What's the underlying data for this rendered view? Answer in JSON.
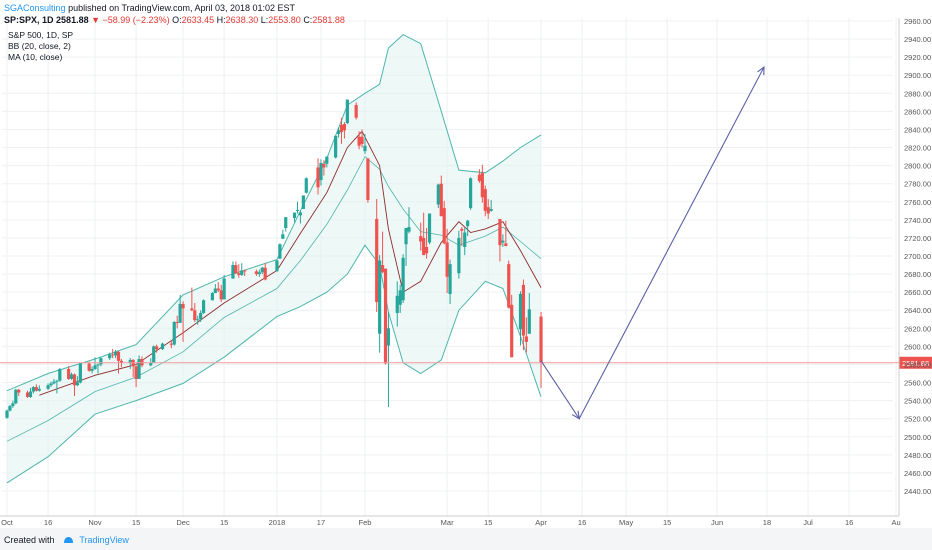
{
  "header": {
    "author": "SGAConsulting",
    "published_text": "published on TradingView.com, April 03, 2018 01:02 EST"
  },
  "quote": {
    "symbol": "SP:SPX, 1D",
    "last": "2581.88",
    "change": "▼ −58.99 (−2.23%)",
    "o_label": "O:",
    "o": "2633.45",
    "h_label": "H:",
    "h": "2638.30",
    "l_label": "L:",
    "l": "2553.80",
    "c_label": "C:",
    "c": "2581.88"
  },
  "legend": {
    "line1": "S&P 500, 1D, SP",
    "line2": "BB (20, close, 2)",
    "line3": "MA (10, close)"
  },
  "footer": {
    "created_with": "Created with",
    "brand": "TradingView"
  },
  "colors": {
    "up": "#26a69a",
    "down": "#ef5350",
    "band": "#4db6ac",
    "ma": "#8e2b2b",
    "arrow": "#5a60a6",
    "price_line": "#ef9a9a",
    "price_tag": "#ef5350"
  },
  "chart_data": {
    "type": "candlestick",
    "ylim": [
      2430,
      2970
    ],
    "price_line": 2581.88,
    "price_tag": "2581.88",
    "y_ticks": [
      2440,
      2460,
      2480,
      2500,
      2520,
      2540,
      2560,
      2580,
      2600,
      2620,
      2640,
      2660,
      2680,
      2700,
      2720,
      2740,
      2760,
      2780,
      2800,
      2820,
      2840,
      2860,
      2880,
      2900,
      2920,
      2940,
      2960
    ],
    "x_ticks": [
      {
        "label": "Oct",
        "d": "2017-10-02"
      },
      {
        "label": "16",
        "d": "2017-10-16"
      },
      {
        "label": "Nov",
        "d": "2017-11-01"
      },
      {
        "label": "15",
        "d": "2017-11-15"
      },
      {
        "label": "Dec",
        "d": "2017-12-01"
      },
      {
        "label": "15",
        "d": "2017-12-15"
      },
      {
        "label": "2018",
        "d": "2018-01-02"
      },
      {
        "label": "17",
        "d": "2018-01-17"
      },
      {
        "label": "Feb",
        "d": "2018-02-01"
      },
      {
        "label": "Mar",
        "d": "2018-03-01"
      },
      {
        "label": "15",
        "d": "2018-03-15"
      },
      {
        "label": "Apr",
        "d": "2018-04-02"
      },
      {
        "label": "16",
        "d": "2018-04-16"
      },
      {
        "label": "May",
        "d": "2018-05-01"
      },
      {
        "label": "15",
        "d": "2018-05-15"
      },
      {
        "label": "Jun",
        "d": "2018-06-01"
      },
      {
        "label": "18",
        "d": "2018-06-18"
      },
      {
        "label": "Jul",
        "d": "2018-07-02"
      },
      {
        "label": "16",
        "d": "2018-07-16"
      },
      {
        "label": "Au",
        "d": "2018-08-01"
      }
    ],
    "candles": [
      [
        "2017-10-02",
        2521,
        2530,
        2520,
        2529
      ],
      [
        "2017-10-03",
        2529,
        2535,
        2528,
        2534
      ],
      [
        "2017-10-04",
        2534,
        2540,
        2532,
        2537
      ],
      [
        "2017-10-05",
        2537,
        2553,
        2536,
        2552
      ],
      [
        "2017-10-06",
        2552,
        2553,
        2545,
        2549
      ],
      [
        "2017-10-09",
        2549,
        2551,
        2543,
        2544
      ],
      [
        "2017-10-10",
        2544,
        2554,
        2543,
        2550
      ],
      [
        "2017-10-11",
        2550,
        2556,
        2548,
        2555
      ],
      [
        "2017-10-12",
        2555,
        2558,
        2550,
        2551
      ],
      [
        "2017-10-13",
        2551,
        2557,
        2550,
        2553
      ],
      [
        "2017-10-16",
        2553,
        2559,
        2552,
        2557
      ],
      [
        "2017-10-17",
        2557,
        2561,
        2555,
        2559
      ],
      [
        "2017-10-18",
        2559,
        2564,
        2558,
        2561
      ],
      [
        "2017-10-19",
        2561,
        2563,
        2548,
        2562
      ],
      [
        "2017-10-20",
        2562,
        2576,
        2561,
        2575
      ],
      [
        "2017-10-23",
        2575,
        2578,
        2563,
        2564
      ],
      [
        "2017-10-24",
        2564,
        2571,
        2563,
        2569
      ],
      [
        "2017-10-25",
        2569,
        2570,
        2545,
        2557
      ],
      [
        "2017-10-26",
        2557,
        2567,
        2556,
        2560
      ],
      [
        "2017-10-27",
        2560,
        2582,
        2559,
        2581
      ],
      [
        "2017-10-30",
        2581,
        2583,
        2572,
        2573
      ],
      [
        "2017-10-31",
        2573,
        2578,
        2570,
        2575
      ],
      [
        "2017-11-01",
        2575,
        2588,
        2574,
        2579
      ],
      [
        "2017-11-02",
        2579,
        2581,
        2570,
        2580
      ],
      [
        "2017-11-03",
        2580,
        2588,
        2578,
        2587
      ],
      [
        "2017-11-06",
        2587,
        2593,
        2585,
        2591
      ],
      [
        "2017-11-07",
        2591,
        2597,
        2587,
        2590
      ],
      [
        "2017-11-08",
        2590,
        2596,
        2587,
        2594
      ],
      [
        "2017-11-09",
        2594,
        2595,
        2570,
        2584
      ],
      [
        "2017-11-10",
        2584,
        2586,
        2577,
        2582
      ],
      [
        "2017-11-13",
        2582,
        2587,
        2575,
        2585
      ],
      [
        "2017-11-14",
        2585,
        2586,
        2566,
        2578
      ],
      [
        "2017-11-15",
        2578,
        2579,
        2555,
        2564
      ],
      [
        "2017-11-16",
        2564,
        2590,
        2564,
        2586
      ],
      [
        "2017-11-17",
        2586,
        2589,
        2577,
        2579
      ],
      [
        "2017-11-20",
        2579,
        2587,
        2578,
        2582
      ],
      [
        "2017-11-21",
        2582,
        2601,
        2582,
        2600
      ],
      [
        "2017-11-22",
        2600,
        2602,
        2593,
        2597
      ],
      [
        "2017-11-24",
        2597,
        2604,
        2596,
        2603
      ],
      [
        "2017-11-27",
        2603,
        2606,
        2598,
        2602
      ],
      [
        "2017-11-28",
        2602,
        2628,
        2601,
        2627
      ],
      [
        "2017-11-29",
        2627,
        2634,
        2620,
        2626
      ],
      [
        "2017-11-30",
        2626,
        2657,
        2626,
        2647
      ],
      [
        "2017-12-01",
        2647,
        2650,
        2605,
        2642
      ],
      [
        "2017-12-04",
        2642,
        2665,
        2639,
        2640
      ],
      [
        "2017-12-05",
        2640,
        2648,
        2627,
        2629
      ],
      [
        "2017-12-06",
        2629,
        2634,
        2624,
        2630
      ],
      [
        "2017-12-07",
        2630,
        2640,
        2627,
        2637
      ],
      [
        "2017-12-08",
        2637,
        2652,
        2636,
        2651
      ],
      [
        "2017-12-11",
        2651,
        2660,
        2651,
        2659
      ],
      [
        "2017-12-12",
        2659,
        2669,
        2659,
        2664
      ],
      [
        "2017-12-13",
        2664,
        2671,
        2660,
        2662
      ],
      [
        "2017-12-14",
        2662,
        2668,
        2649,
        2652
      ],
      [
        "2017-12-15",
        2652,
        2679,
        2652,
        2675
      ],
      [
        "2017-12-18",
        2675,
        2694,
        2675,
        2690
      ],
      [
        "2017-12-19",
        2690,
        2694,
        2680,
        2681
      ],
      [
        "2017-12-20",
        2681,
        2691,
        2676,
        2679
      ],
      [
        "2017-12-21",
        2679,
        2692,
        2678,
        2684
      ],
      [
        "2017-12-22",
        2684,
        2685,
        2678,
        2683
      ],
      [
        "2017-12-26",
        2683,
        2685,
        2678,
        2680
      ],
      [
        "2017-12-27",
        2680,
        2685,
        2677,
        2682
      ],
      [
        "2017-12-28",
        2682,
        2688,
        2680,
        2687
      ],
      [
        "2017-12-29",
        2687,
        2692,
        2673,
        2674
      ],
      [
        "2018-01-02",
        2683,
        2696,
        2683,
        2695
      ],
      [
        "2018-01-03",
        2697,
        2714,
        2697,
        2713
      ],
      [
        "2018-01-04",
        2719,
        2729,
        2719,
        2724
      ],
      [
        "2018-01-05",
        2731,
        2743,
        2727,
        2743
      ],
      [
        "2018-01-08",
        2742,
        2748,
        2737,
        2748
      ],
      [
        "2018-01-09",
        2751,
        2760,
        2747,
        2751
      ],
      [
        "2018-01-10",
        2745,
        2750,
        2736,
        2748
      ],
      [
        "2018-01-11",
        2752,
        2767,
        2752,
        2767
      ],
      [
        "2018-01-12",
        2770,
        2787,
        2769,
        2786
      ],
      [
        "2018-01-16",
        2798,
        2808,
        2768,
        2776
      ],
      [
        "2018-01-17",
        2784,
        2807,
        2778,
        2803
      ],
      [
        "2018-01-18",
        2802,
        2806,
        2789,
        2798
      ],
      [
        "2018-01-19",
        2802,
        2810,
        2798,
        2810
      ],
      [
        "2018-01-22",
        2809,
        2833,
        2808,
        2833
      ],
      [
        "2018-01-23",
        2835,
        2842,
        2831,
        2839
      ],
      [
        "2018-01-24",
        2845,
        2853,
        2824,
        2837
      ],
      [
        "2018-01-25",
        2846,
        2848,
        2830,
        2839
      ],
      [
        "2018-01-26",
        2847,
        2873,
        2846,
        2873
      ],
      [
        "2018-01-29",
        2867,
        2870,
        2851,
        2853
      ],
      [
        "2018-01-30",
        2832,
        2838,
        2818,
        2822
      ],
      [
        "2018-01-31",
        2832,
        2840,
        2820,
        2824
      ],
      [
        "2018-02-01",
        2816,
        2835,
        2813,
        2822
      ],
      [
        "2018-02-02",
        2808,
        2808,
        2759,
        2762
      ],
      [
        "2018-02-05",
        2741,
        2763,
        2638,
        2649
      ],
      [
        "2018-02-06",
        2614,
        2701,
        2593,
        2695
      ],
      [
        "2018-02-07",
        2690,
        2727,
        2681,
        2682
      ],
      [
        "2018-02-08",
        2686,
        2686,
        2580,
        2581
      ],
      [
        "2018-02-09",
        2601,
        2638,
        2533,
        2620
      ],
      [
        "2018-02-12",
        2637,
        2672,
        2622,
        2656
      ],
      [
        "2018-02-13",
        2646,
        2668,
        2637,
        2662
      ],
      [
        "2018-02-14",
        2651,
        2702,
        2648,
        2698
      ],
      [
        "2018-02-15",
        2713,
        2731,
        2689,
        2731
      ],
      [
        "2018-02-16",
        2727,
        2754,
        2725,
        2732
      ],
      [
        "2018-02-20",
        2722,
        2737,
        2706,
        2716
      ],
      [
        "2018-02-21",
        2720,
        2748,
        2701,
        2701
      ],
      [
        "2018-02-22",
        2710,
        2731,
        2697,
        2703
      ],
      [
        "2018-02-23",
        2715,
        2747,
        2713,
        2747
      ],
      [
        "2018-02-26",
        2757,
        2780,
        2753,
        2779
      ],
      [
        "2018-02-27",
        2780,
        2789,
        2744,
        2744
      ],
      [
        "2018-02-28",
        2753,
        2761,
        2713,
        2714
      ],
      [
        "2018-03-01",
        2715,
        2730,
        2659,
        2677
      ],
      [
        "2018-03-02",
        2658,
        2696,
        2647,
        2691
      ],
      [
        "2018-03-05",
        2681,
        2728,
        2675,
        2720
      ],
      [
        "2018-03-06",
        2730,
        2732,
        2711,
        2728
      ],
      [
        "2018-03-07",
        2710,
        2731,
        2701,
        2726
      ],
      [
        "2018-03-08",
        2733,
        2740,
        2722,
        2739
      ],
      [
        "2018-03-09",
        2753,
        2787,
        2751,
        2786
      ],
      [
        "2018-03-12",
        2790,
        2796,
        2781,
        2783
      ],
      [
        "2018-03-13",
        2792,
        2801,
        2759,
        2765
      ],
      [
        "2018-03-14",
        2774,
        2778,
        2744,
        2750
      ],
      [
        "2018-03-15",
        2754,
        2763,
        2741,
        2747
      ],
      [
        "2018-03-16",
        2750,
        2762,
        2749,
        2752
      ],
      [
        "2018-03-19",
        2741,
        2741,
        2694,
        2712
      ],
      [
        "2018-03-20",
        2715,
        2724,
        2710,
        2717
      ],
      [
        "2018-03-21",
        2714,
        2739,
        2712,
        2711
      ],
      [
        "2018-03-22",
        2691,
        2695,
        2642,
        2643
      ],
      [
        "2018-03-23",
        2646,
        2657,
        2588,
        2588
      ],
      [
        "2018-03-26",
        2619,
        2661,
        2601,
        2658
      ],
      [
        "2018-03-27",
        2668,
        2674,
        2596,
        2612
      ],
      [
        "2018-03-28",
        2611,
        2632,
        2593,
        2605
      ],
      [
        "2018-03-29",
        2614,
        2659,
        2614,
        2641
      ],
      [
        "2018-04-02",
        2633,
        2638,
        2554,
        2582
      ]
    ],
    "ma10": [
      [
        "2017-10-13",
        2546
      ],
      [
        "2017-11-01",
        2568
      ],
      [
        "2017-11-15",
        2580
      ],
      [
        "2017-12-01",
        2615
      ],
      [
        "2017-12-15",
        2648
      ],
      [
        "2018-01-02",
        2684
      ],
      [
        "2018-01-10",
        2725
      ],
      [
        "2018-01-19",
        2770
      ],
      [
        "2018-01-26",
        2820
      ],
      [
        "2018-01-31",
        2838
      ],
      [
        "2018-02-06",
        2800
      ],
      [
        "2018-02-09",
        2730
      ],
      [
        "2018-02-14",
        2660
      ],
      [
        "2018-02-20",
        2672
      ],
      [
        "2018-02-27",
        2715
      ],
      [
        "2018-03-05",
        2738
      ],
      [
        "2018-03-09",
        2726
      ],
      [
        "2018-03-14",
        2730
      ],
      [
        "2018-03-20",
        2738
      ],
      [
        "2018-03-26",
        2706
      ],
      [
        "2018-04-02",
        2665
      ]
    ],
    "bb_upper": [
      [
        "2017-10-02",
        2551
      ],
      [
        "2017-10-16",
        2570
      ],
      [
        "2017-11-01",
        2586
      ],
      [
        "2017-11-15",
        2602
      ],
      [
        "2017-12-01",
        2657
      ],
      [
        "2017-12-15",
        2677
      ],
      [
        "2018-01-02",
        2696
      ],
      [
        "2018-01-10",
        2750
      ],
      [
        "2018-01-19",
        2808
      ],
      [
        "2018-01-26",
        2867
      ],
      [
        "2018-02-01",
        2880
      ],
      [
        "2018-02-06",
        2890
      ],
      [
        "2018-02-09",
        2930
      ],
      [
        "2018-02-14",
        2945
      ],
      [
        "2018-02-20",
        2935
      ],
      [
        "2018-02-27",
        2860
      ],
      [
        "2018-03-05",
        2795
      ],
      [
        "2018-03-14",
        2792
      ],
      [
        "2018-03-20",
        2805
      ],
      [
        "2018-03-26",
        2820
      ],
      [
        "2018-04-02",
        2834
      ]
    ],
    "bb_mid": [
      [
        "2017-10-02",
        2495
      ],
      [
        "2017-10-16",
        2518
      ],
      [
        "2017-11-01",
        2550
      ],
      [
        "2017-11-15",
        2566
      ],
      [
        "2017-12-01",
        2594
      ],
      [
        "2017-12-15",
        2632
      ],
      [
        "2018-01-02",
        2664
      ],
      [
        "2018-01-10",
        2695
      ],
      [
        "2018-01-19",
        2735
      ],
      [
        "2018-01-26",
        2773
      ],
      [
        "2018-02-01",
        2810
      ],
      [
        "2018-02-06",
        2796
      ],
      [
        "2018-02-09",
        2777
      ],
      [
        "2018-02-14",
        2752
      ],
      [
        "2018-02-20",
        2727
      ],
      [
        "2018-02-27",
        2723
      ],
      [
        "2018-03-05",
        2712
      ],
      [
        "2018-03-14",
        2722
      ],
      [
        "2018-03-20",
        2732
      ],
      [
        "2018-03-26",
        2716
      ],
      [
        "2018-04-02",
        2697
      ]
    ],
    "bb_lower": [
      [
        "2017-10-02",
        2449
      ],
      [
        "2017-10-16",
        2478
      ],
      [
        "2017-11-01",
        2525
      ],
      [
        "2017-11-15",
        2540
      ],
      [
        "2017-12-01",
        2559
      ],
      [
        "2017-12-15",
        2588
      ],
      [
        "2018-01-02",
        2633
      ],
      [
        "2018-01-10",
        2644
      ],
      [
        "2018-01-19",
        2660
      ],
      [
        "2018-01-26",
        2680
      ],
      [
        "2018-02-01",
        2712
      ],
      [
        "2018-02-06",
        2690
      ],
      [
        "2018-02-09",
        2638
      ],
      [
        "2018-02-14",
        2582
      ],
      [
        "2018-02-20",
        2570
      ],
      [
        "2018-02-27",
        2585
      ],
      [
        "2018-03-05",
        2640
      ],
      [
        "2018-03-14",
        2672
      ],
      [
        "2018-03-20",
        2664
      ],
      [
        "2018-03-26",
        2611
      ],
      [
        "2018-04-02",
        2544
      ]
    ],
    "forecast_arrow": [
      [
        "2018-04-02",
        2584
      ],
      [
        "2018-04-15",
        2520
      ],
      [
        "2018-06-17",
        2909
      ]
    ]
  }
}
